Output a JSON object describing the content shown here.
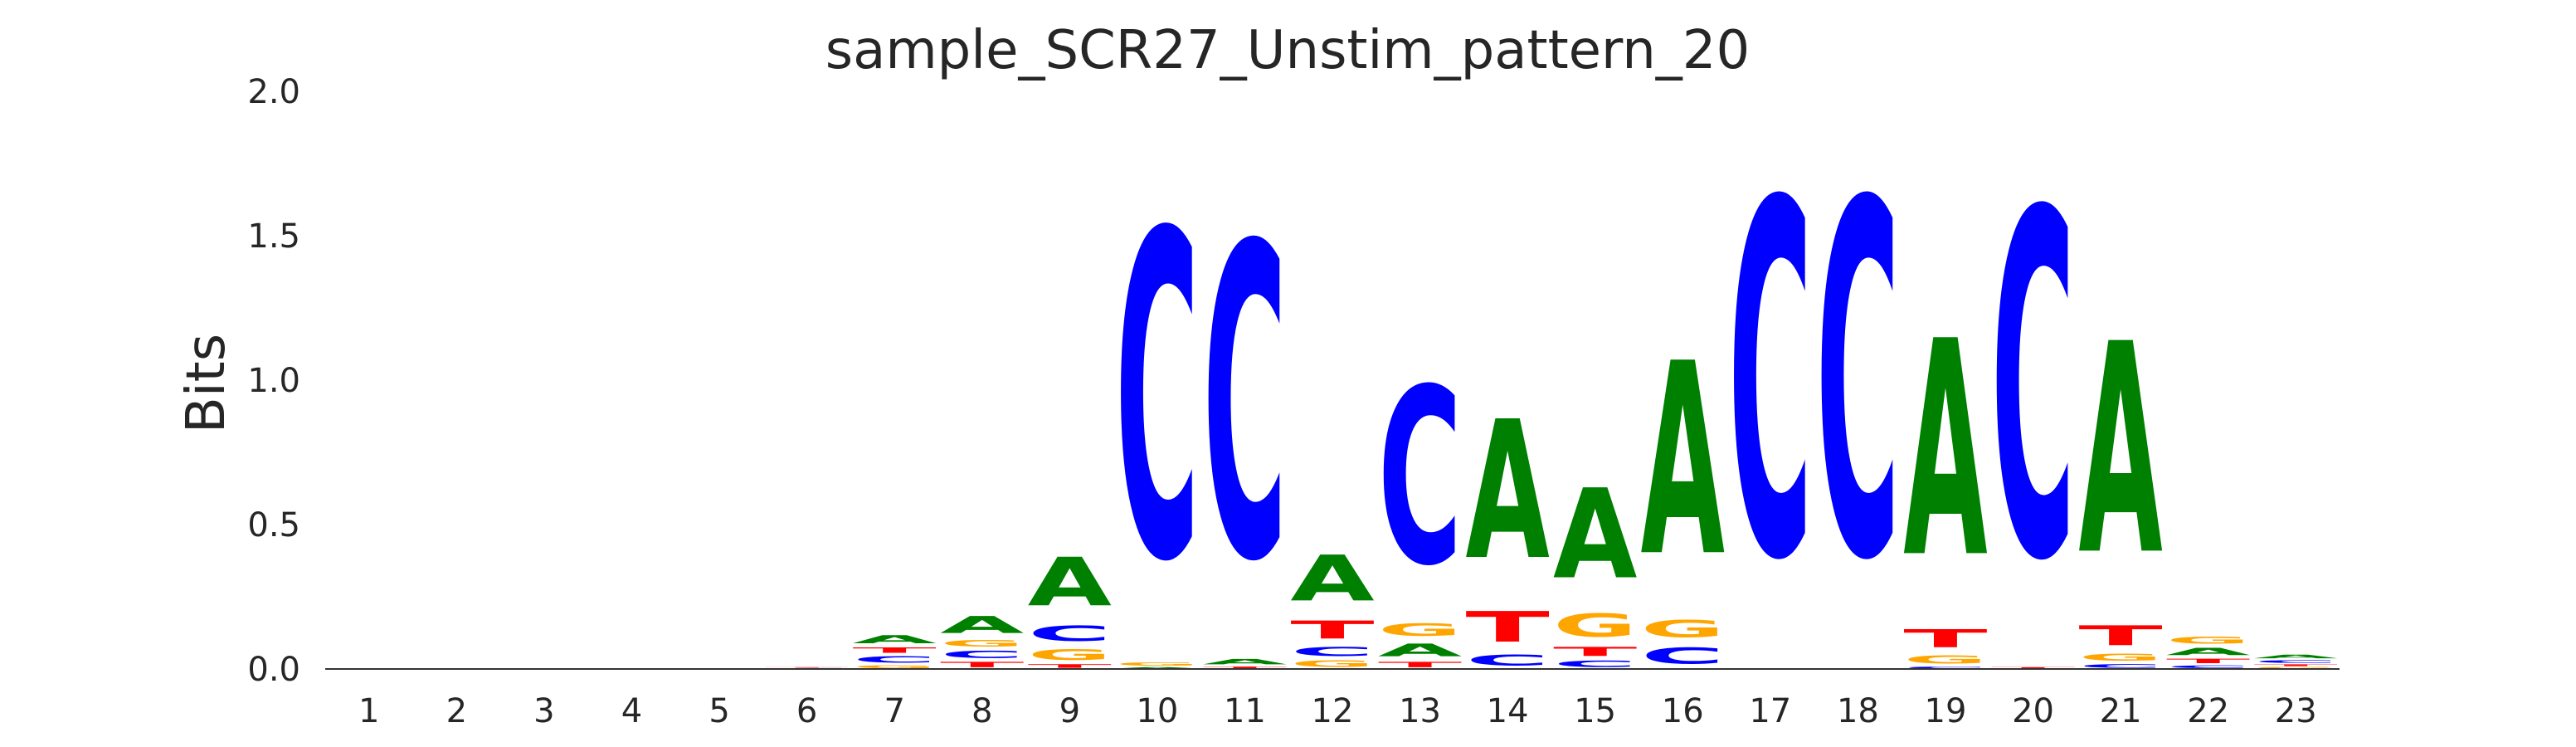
{
  "chart_data": {
    "type": "sequence_logo",
    "title": "sample_SCR27_Unstim_pattern_20",
    "xlabel": "",
    "ylabel": "Bits",
    "ylim": [
      0,
      2.0
    ],
    "yticks": [
      "0.0",
      "0.5",
      "1.0",
      "1.5",
      "2.0"
    ],
    "grid": false,
    "legend": "none",
    "colors": {
      "A": "#008000",
      "C": "#0000ff",
      "G": "#ffa500",
      "T": "#ff0000"
    },
    "positions": [
      {
        "pos": "1",
        "letters": []
      },
      {
        "pos": "2",
        "letters": []
      },
      {
        "pos": "3",
        "letters": []
      },
      {
        "pos": "4",
        "letters": []
      },
      {
        "pos": "5",
        "letters": []
      },
      {
        "pos": "6",
        "letters": [
          {
            "base": "C",
            "bits": 0.004
          },
          {
            "base": "T",
            "bits": 0.003
          }
        ]
      },
      {
        "pos": "7",
        "letters": [
          {
            "base": "G",
            "bits": 0.015
          },
          {
            "base": "C",
            "bits": 0.035
          },
          {
            "base": "T",
            "bits": 0.03
          },
          {
            "base": "A",
            "bits": 0.045
          }
        ]
      },
      {
        "pos": "8",
        "letters": [
          {
            "base": "T",
            "bits": 0.03
          },
          {
            "base": "C",
            "bits": 0.04
          },
          {
            "base": "G",
            "bits": 0.035
          },
          {
            "base": "A",
            "bits": 0.095
          }
        ]
      },
      {
        "pos": "9",
        "letters": [
          {
            "base": "T",
            "bits": 0.02
          },
          {
            "base": "G",
            "bits": 0.06
          },
          {
            "base": "C",
            "bits": 0.085
          },
          {
            "base": "A",
            "bits": 0.27
          }
        ]
      },
      {
        "pos": "10",
        "letters": [
          {
            "base": "A",
            "bits": 0.008
          },
          {
            "base": "G",
            "bits": 0.018
          },
          {
            "base": "C",
            "bits": 1.81
          }
        ]
      },
      {
        "pos": "11",
        "letters": [
          {
            "base": "T",
            "bits": 0.01
          },
          {
            "base": "A",
            "bits": 0.03
          },
          {
            "base": "C",
            "bits": 1.74
          }
        ]
      },
      {
        "pos": "12",
        "letters": [
          {
            "base": "G",
            "bits": 0.035
          },
          {
            "base": "C",
            "bits": 0.05
          },
          {
            "base": "T",
            "bits": 0.1
          },
          {
            "base": "A",
            "bits": 0.255
          }
        ]
      },
      {
        "pos": "13",
        "letters": [
          {
            "base": "T",
            "bits": 0.03
          },
          {
            "base": "A",
            "bits": 0.07
          },
          {
            "base": "G",
            "bits": 0.07
          },
          {
            "base": "C",
            "bits": 0.98
          }
        ]
      },
      {
        "pos": "14",
        "letters": [
          {
            "base": "C",
            "bits": 0.06
          },
          {
            "base": "T",
            "bits": 0.17
          },
          {
            "base": "A",
            "bits": 0.77
          }
        ]
      },
      {
        "pos": "15",
        "letters": [
          {
            "base": "C",
            "bits": 0.035
          },
          {
            "base": "T",
            "bits": 0.05
          },
          {
            "base": "G",
            "bits": 0.13
          },
          {
            "base": "A",
            "bits": 0.5
          }
        ]
      },
      {
        "pos": "16",
        "letters": [
          {
            "base": "C",
            "bits": 0.09
          },
          {
            "base": "G",
            "bits": 0.095
          },
          {
            "base": "A",
            "bits": 1.07
          }
        ]
      },
      {
        "pos": "17",
        "letters": [
          {
            "base": "C",
            "bits": 1.97
          }
        ]
      },
      {
        "pos": "18",
        "letters": [
          {
            "base": "C",
            "bits": 1.97
          }
        ]
      },
      {
        "pos": "19",
        "letters": [
          {
            "base": "C",
            "bits": 0.01
          },
          {
            "base": "G",
            "bits": 0.045
          },
          {
            "base": "T",
            "bits": 0.1
          },
          {
            "base": "A",
            "bits": 1.2
          }
        ]
      },
      {
        "pos": "20",
        "letters": [
          {
            "base": "T",
            "bits": 0.008
          },
          {
            "base": "C",
            "bits": 1.92
          }
        ]
      },
      {
        "pos": "21",
        "letters": [
          {
            "base": "C",
            "bits": 0.02
          },
          {
            "base": "G",
            "bits": 0.04
          },
          {
            "base": "T",
            "bits": 0.11
          },
          {
            "base": "A",
            "bits": 1.17
          }
        ]
      },
      {
        "pos": "22",
        "letters": [
          {
            "base": "C",
            "bits": 0.015
          },
          {
            "base": "T",
            "bits": 0.025
          },
          {
            "base": "A",
            "bits": 0.04
          },
          {
            "base": "G",
            "bits": 0.04
          }
        ]
      },
      {
        "pos": "23",
        "letters": [
          {
            "base": "G",
            "bits": 0.008
          },
          {
            "base": "T",
            "bits": 0.01
          },
          {
            "base": "C",
            "bits": 0.015
          },
          {
            "base": "A",
            "bits": 0.02
          }
        ]
      }
    ]
  }
}
